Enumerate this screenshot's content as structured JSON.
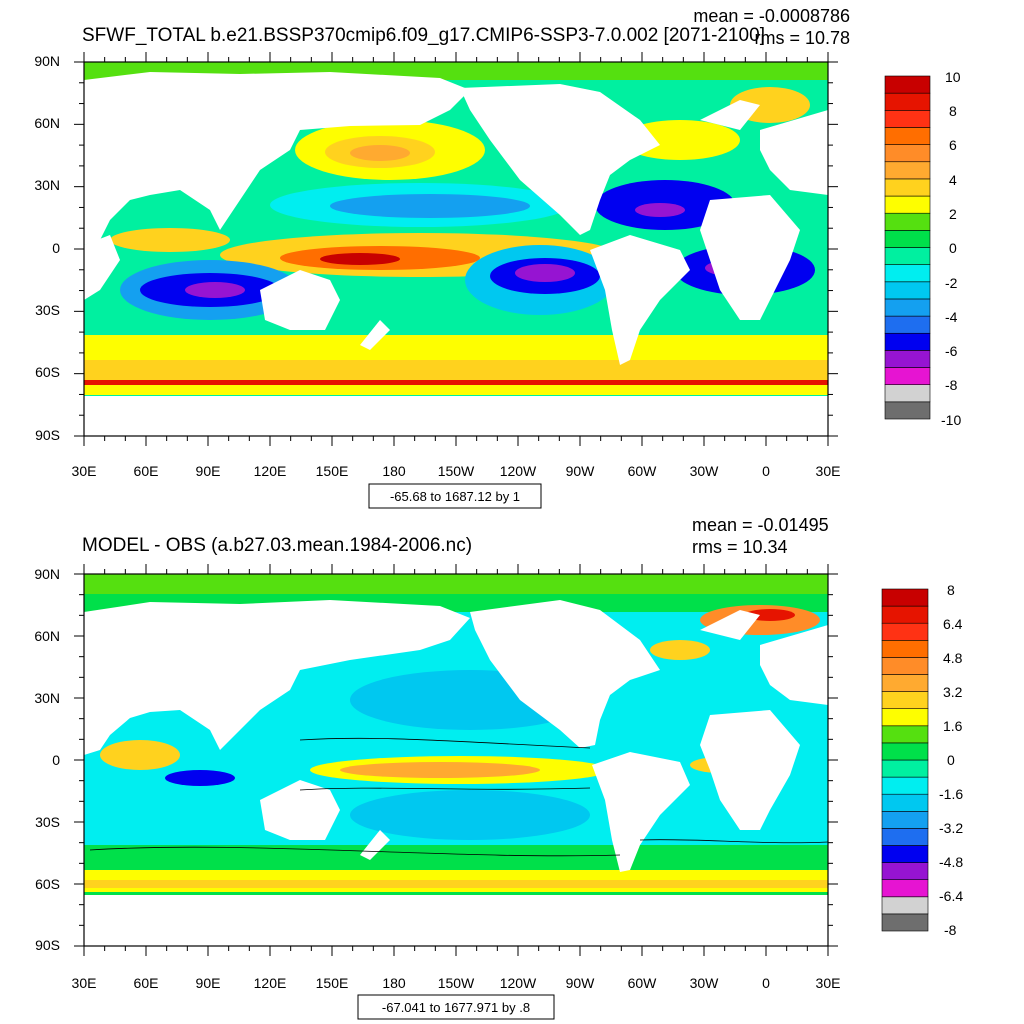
{
  "panels": [
    {
      "title": "SFWF_TOTAL b.e21.BSSP370cmip6.f09_g17.CMIP6-SSP3-7.0.002 [2071-2100]",
      "mean_text": "mean = -0.0008786",
      "rms_text": "rms = 10.78",
      "range_text": "-65.68 to 1687.12 by 1",
      "colorbar": {
        "labels": [
          "10",
          "8",
          "6",
          "4",
          "2",
          "0",
          "-2",
          "-4",
          "-6",
          "-8",
          "-10"
        ]
      }
    },
    {
      "title": "MODEL - OBS (a.b27.03.mean.1984-2006.nc)",
      "mean_text": "mean = -0.01495",
      "rms_text": "rms = 10.34",
      "range_text": "-67.041 to 1677.971 by .8",
      "colorbar": {
        "labels": [
          "8",
          "6.4",
          "4.8",
          "3.2",
          "1.6",
          "0",
          "-1.6",
          "-3.2",
          "-4.8",
          "-6.4",
          "-8"
        ]
      }
    }
  ],
  "lat_labels": [
    "90N",
    "60N",
    "30N",
    "0",
    "30S",
    "60S",
    "90S"
  ],
  "lon_labels": [
    "30E",
    "60E",
    "90E",
    "120E",
    "150E",
    "180",
    "150W",
    "120W",
    "90W",
    "60W",
    "30W",
    "0",
    "30E"
  ],
  "colorbar_colors": [
    "#6e6e6e",
    "#d2d2d2",
    "#e614d2",
    "#9614d2",
    "#0000f0",
    "#1e6ef0",
    "#14a0f0",
    "#00c8f0",
    "#00eef0",
    "#00f0a0",
    "#00e04a",
    "#55e010",
    "#fefe00",
    "#ffd21e",
    "#ffaa30",
    "#ff8c28",
    "#ff6e00",
    "#ff3214",
    "#e61400",
    "#c80000"
  ]
}
